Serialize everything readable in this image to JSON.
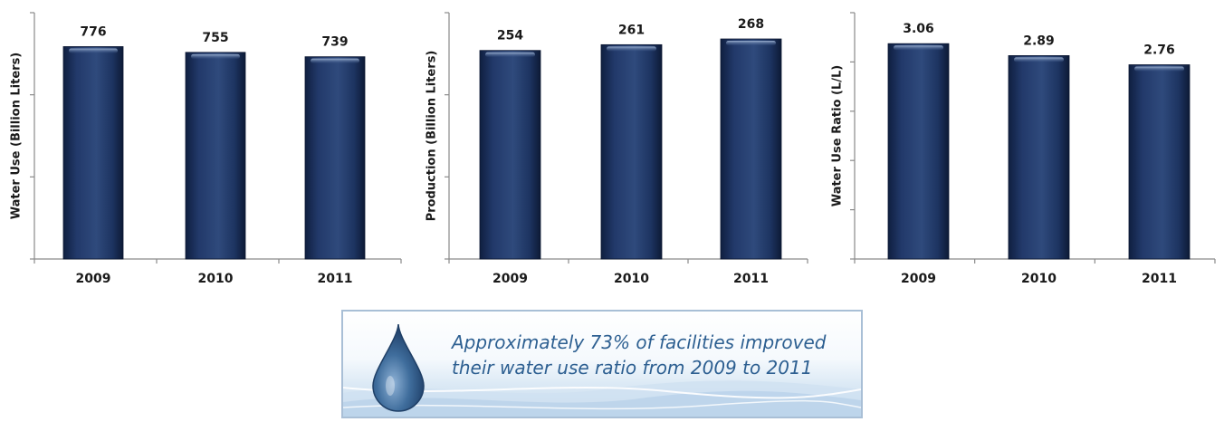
{
  "chart_data": [
    {
      "type": "bar",
      "categories": [
        "2009",
        "2010",
        "2011"
      ],
      "values": [
        776,
        755,
        739
      ],
      "value_labels": [
        "776",
        "755",
        "739"
      ],
      "ylabel": "Water Use (Billion Liters)",
      "ylim": [
        0,
        900
      ],
      "y_ticks": [
        0,
        300,
        600,
        900
      ],
      "y_tick_labels_shown": false,
      "grid": false
    },
    {
      "type": "bar",
      "categories": [
        "2009",
        "2010",
        "2011"
      ],
      "values": [
        254,
        261,
        268
      ],
      "value_labels": [
        "254",
        "261",
        "268"
      ],
      "ylabel": "Production (Billion Liters)",
      "ylim": [
        0,
        300
      ],
      "y_ticks": [
        0,
        100,
        200,
        300
      ],
      "y_tick_labels_shown": false,
      "grid": false
    },
    {
      "type": "bar",
      "categories": [
        "2009",
        "2010",
        "2011"
      ],
      "values": [
        3.06,
        2.89,
        2.76
      ],
      "value_labels": [
        "3.06",
        "2.89",
        "2.76"
      ],
      "ylabel": "Water Use Ratio (L/L)",
      "ylim": [
        0,
        3.5
      ],
      "y_ticks": [
        0,
        0.7,
        1.4,
        2.1,
        2.8,
        3.5
      ],
      "y_tick_labels_shown": false,
      "grid": false
    }
  ],
  "colors": {
    "bar_dark": "#0f1f40",
    "bar_mid": "#263f6e",
    "bar_light": "#3a5686",
    "axis": "#8a8a8a",
    "callout_text": "#2d5f91",
    "callout_border": "#a9bfd6"
  },
  "callout": {
    "icon": "water-drop-icon",
    "line1": "Approximately 73% of facilities improved",
    "line2": "their water use ratio from 2009 to 2011"
  }
}
